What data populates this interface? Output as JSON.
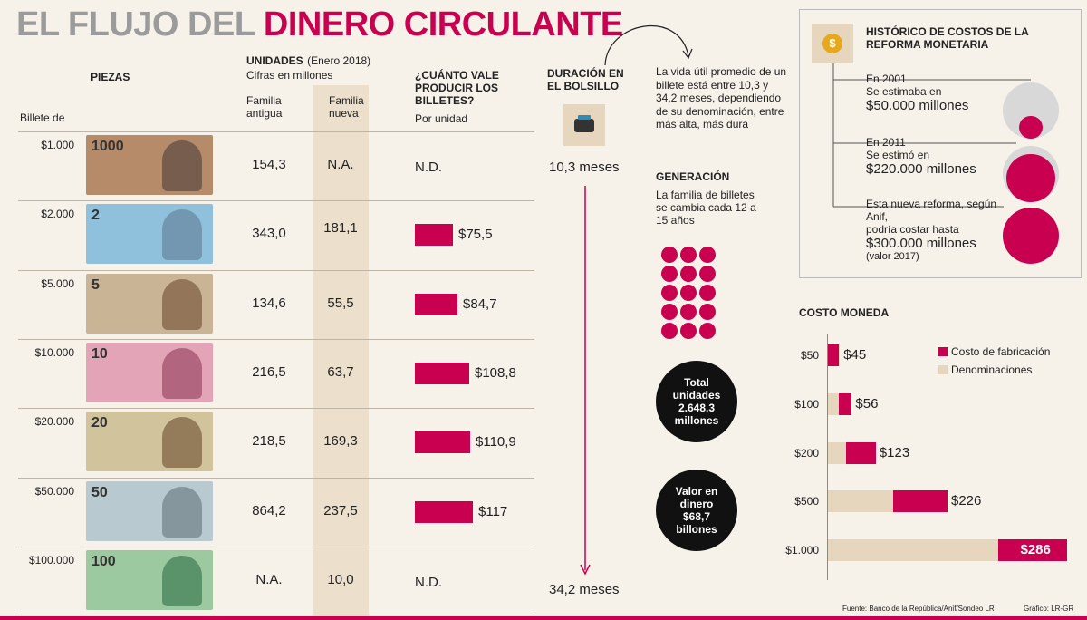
{
  "title": {
    "part1": "EL FLUJO DEL",
    "part2": "DINERO CIRCULANTE"
  },
  "table": {
    "piezas_label": "PIEZAS",
    "billete_label": "Billete de",
    "unidades_label": "UNIDADES",
    "unidades_date": "(Enero 2018)",
    "unidades_sub": "Cifras en millones",
    "familia_antigua": "Familia antigua",
    "familia_nueva": "Familia nueva",
    "cost_header": "¿CUÁNTO VALE PRODUCIR LOS BILLETES?",
    "cost_sub": "Por unidad",
    "rows": [
      {
        "denom": "$1.000",
        "note_num": "1000",
        "antigua": "154,3",
        "nueva": "N.A.",
        "cost": 0,
        "cost_label": "N.D."
      },
      {
        "denom": "$2.000",
        "note_num": "2",
        "antigua": "343,0",
        "nueva": "181,1",
        "cost": 75.5,
        "cost_label": "$75,5"
      },
      {
        "denom": "$5.000",
        "note_num": "5",
        "antigua": "134,6",
        "nueva": "55,5",
        "cost": 84.7,
        "cost_label": "$84,7"
      },
      {
        "denom": "$10.000",
        "note_num": "10",
        "antigua": "216,5",
        "nueva": "63,7",
        "cost": 108.8,
        "cost_label": "$108,8"
      },
      {
        "denom": "$20.000",
        "note_num": "20",
        "antigua": "218,5",
        "nueva": "169,3",
        "cost": 110.9,
        "cost_label": "$110,9"
      },
      {
        "denom": "$50.000",
        "note_num": "50",
        "antigua": "864,2",
        "nueva": "237,5",
        "cost": 117,
        "cost_label": "$117"
      },
      {
        "denom": "$100.000",
        "note_num": "100",
        "antigua": "N.A.",
        "nueva": "10,0",
        "cost": 0,
        "cost_label": "N.D."
      }
    ]
  },
  "duration": {
    "title": "DURACIÓN EN EL BOLSILLO",
    "start": "10,3 meses",
    "end": "34,2 meses",
    "note": "La vida útil promedio de un billete está entre 10,3 y 34,2 meses, dependiendo de su denominación, entre más alta, más dura"
  },
  "generation": {
    "title": "GENERACIÓN",
    "text": "La familia de billetes se cambia cada 12 a 15 años",
    "total": "Total unidades 2.648,3 millones",
    "value": "Valor en dinero $68,7 billones"
  },
  "historic": {
    "title": "HISTÓRICO DE COSTOS DE LA REFORMA MONETARIA",
    "items": [
      {
        "line1": "En 2001",
        "line2": "Se estimaba en",
        "amount": "$50.000 millones",
        "extra": "",
        "value": 50000
      },
      {
        "line1": "En 2011",
        "line2": "Se estimó en",
        "amount": "$220.000 millones",
        "extra": "",
        "value": 220000
      },
      {
        "line1": "Esta nueva reforma, según Anif,",
        "line2": "podría costar hasta",
        "amount": "$300.000 millones",
        "extra": "(valor 2017)",
        "value": 300000
      }
    ]
  },
  "coins": {
    "title": "COSTO MONEDA",
    "legend_cost": "Costo de fabricación",
    "legend_denom": "Denominaciones",
    "items": [
      {
        "label": "$50",
        "denom": 50,
        "cost": 45,
        "cost_label": "$45"
      },
      {
        "label": "$100",
        "denom": 100,
        "cost": 56,
        "cost_label": "$56"
      },
      {
        "label": "$200",
        "denom": 200,
        "cost": 123,
        "cost_label": "$123"
      },
      {
        "label": "$500",
        "denom": 500,
        "cost": 226,
        "cost_label": "$226"
      },
      {
        "label": "$1.000",
        "denom": 1000,
        "cost": 286,
        "cost_label": "$286"
      }
    ]
  },
  "footer": {
    "source": "Fuente: Banco de la República/Anif/Sondeo LR",
    "credit": "Gráfico: LR-GR"
  },
  "colors": {
    "accent": "#c8004f",
    "bg": "#f6f1e9",
    "band": "#ecdfcc"
  },
  "chart_data": [
    {
      "type": "bar",
      "title": "¿CUÁNTO VALE PRODUCIR LOS BILLETES?",
      "categories": [
        "$2.000",
        "$5.000",
        "$10.000",
        "$20.000",
        "$50.000"
      ],
      "values": [
        75.5,
        84.7,
        108.8,
        110.9,
        117
      ],
      "ylabel": "Por unidad"
    },
    {
      "type": "bar",
      "title": "COSTO MONEDA",
      "categories": [
        "$50",
        "$100",
        "$200",
        "$500",
        "$1.000"
      ],
      "series": [
        {
          "name": "Denominaciones",
          "values": [
            50,
            100,
            200,
            500,
            1000
          ]
        },
        {
          "name": "Costo de fabricación",
          "values": [
            45,
            56,
            123,
            226,
            286
          ]
        }
      ]
    }
  ]
}
